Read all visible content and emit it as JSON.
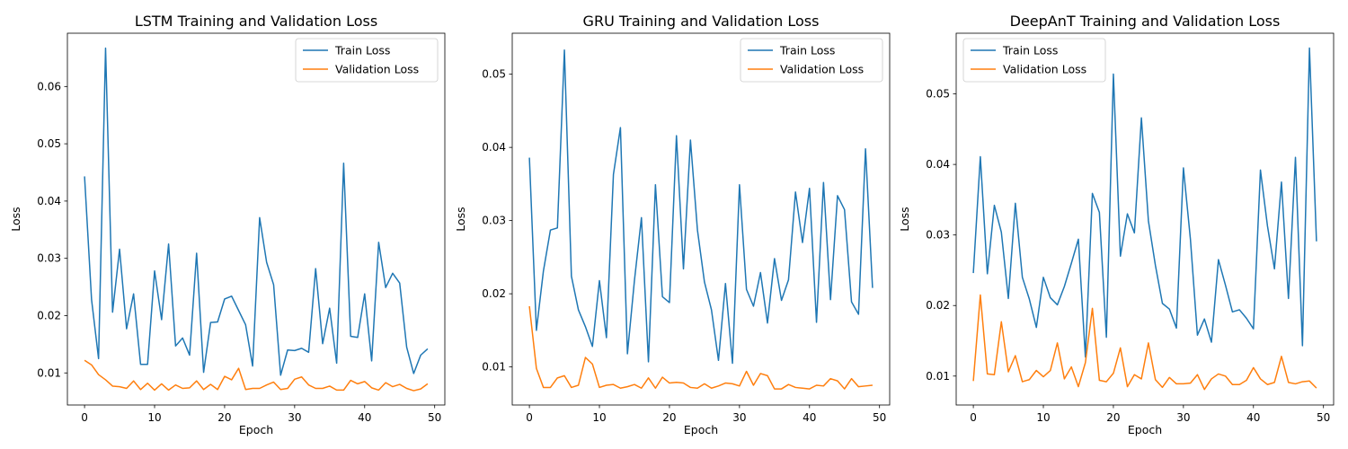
{
  "chart_data": [
    {
      "type": "line",
      "title": "LSTM Training and Validation Loss",
      "xlabel": "Epoch",
      "ylabel": "Loss",
      "xlim": [
        -2.45,
        51.45
      ],
      "ylim": [
        0.0044,
        0.0693
      ],
      "xticks": [
        0,
        10,
        20,
        30,
        40,
        50
      ],
      "yticks": [
        0.01,
        0.02,
        0.03,
        0.04,
        0.05,
        0.06
      ],
      "ytick_labels": [
        "0.01",
        "0.02",
        "0.03",
        "0.04",
        "0.05",
        "0.06"
      ],
      "legend": "top-right",
      "grid": false,
      "x": [
        0,
        1,
        2,
        3,
        4,
        5,
        6,
        7,
        8,
        9,
        10,
        11,
        12,
        13,
        14,
        15,
        16,
        17,
        18,
        19,
        20,
        21,
        22,
        23,
        24,
        25,
        26,
        27,
        28,
        29,
        30,
        31,
        32,
        33,
        34,
        35,
        36,
        37,
        38,
        39,
        40,
        41,
        42,
        43,
        44,
        45,
        46,
        47,
        48,
        49
      ],
      "series": [
        {
          "name": "Train Loss",
          "color": "#1f77b4",
          "values": [
            0.0443,
            0.0228,
            0.0125,
            0.0667,
            0.0206,
            0.0316,
            0.0177,
            0.0238,
            0.0115,
            0.0115,
            0.0278,
            0.0193,
            0.0325,
            0.0147,
            0.0161,
            0.0131,
            0.0309,
            0.0101,
            0.0188,
            0.0189,
            0.0229,
            0.0234,
            0.0209,
            0.0184,
            0.0112,
            0.0371,
            0.0293,
            0.0254,
            0.0096,
            0.014,
            0.0139,
            0.0143,
            0.0136,
            0.0282,
            0.0151,
            0.0213,
            0.0117,
            0.0466,
            0.0164,
            0.0162,
            0.0238,
            0.0121,
            0.0328,
            0.0249,
            0.0274,
            0.0257,
            0.0145,
            0.0099,
            0.0131,
            0.0142
          ]
        },
        {
          "name": "Validation Loss",
          "color": "#ff7f0e",
          "values": [
            0.0122,
            0.0114,
            0.0097,
            0.0088,
            0.0077,
            0.0076,
            0.0073,
            0.0086,
            0.0071,
            0.0082,
            0.007,
            0.0081,
            0.007,
            0.0079,
            0.0073,
            0.0074,
            0.0086,
            0.0071,
            0.008,
            0.0071,
            0.0094,
            0.0088,
            0.0108,
            0.0071,
            0.0073,
            0.0073,
            0.0079,
            0.0084,
            0.0071,
            0.0073,
            0.0089,
            0.0093,
            0.0079,
            0.0073,
            0.0073,
            0.0077,
            0.007,
            0.007,
            0.0087,
            0.0081,
            0.0085,
            0.0074,
            0.007,
            0.0083,
            0.0076,
            0.008,
            0.0073,
            0.0069,
            0.0072,
            0.0081
          ]
        }
      ]
    },
    {
      "type": "line",
      "title": "GRU Training and Validation Loss",
      "xlabel": "Epoch",
      "ylabel": "Loss",
      "xlim": [
        -2.45,
        51.45
      ],
      "ylim": [
        0.0048,
        0.0556
      ],
      "xticks": [
        0,
        10,
        20,
        30,
        40,
        50
      ],
      "yticks": [
        0.01,
        0.02,
        0.03,
        0.04,
        0.05
      ],
      "ytick_labels": [
        "0.01",
        "0.02",
        "0.03",
        "0.04",
        "0.05"
      ],
      "legend": "top-right",
      "grid": false,
      "x": [
        0,
        1,
        2,
        3,
        4,
        5,
        6,
        7,
        8,
        9,
        10,
        11,
        12,
        13,
        14,
        15,
        16,
        17,
        18,
        19,
        20,
        21,
        22,
        23,
        24,
        25,
        26,
        27,
        28,
        29,
        30,
        31,
        32,
        33,
        34,
        35,
        36,
        37,
        38,
        39,
        40,
        41,
        42,
        43,
        44,
        45,
        46,
        47,
        48,
        49
      ],
      "series": [
        {
          "name": "Train Loss",
          "color": "#1f77b4",
          "values": [
            0.0386,
            0.015,
            0.0231,
            0.0287,
            0.029,
            0.0533,
            0.0224,
            0.0178,
            0.0155,
            0.0128,
            0.0218,
            0.014,
            0.0363,
            0.0427,
            0.0118,
            0.0218,
            0.0304,
            0.0107,
            0.0349,
            0.0196,
            0.0188,
            0.0416,
            0.0234,
            0.041,
            0.0287,
            0.0216,
            0.0178,
            0.0109,
            0.0214,
            0.0105,
            0.0349,
            0.0206,
            0.0183,
            0.0229,
            0.016,
            0.0248,
            0.0191,
            0.0219,
            0.0339,
            0.027,
            0.0344,
            0.0161,
            0.0352,
            0.0192,
            0.0334,
            0.0315,
            0.0189,
            0.0172,
            0.0398,
            0.0208
          ]
        },
        {
          "name": "Validation Loss",
          "color": "#ff7f0e",
          "values": [
            0.0183,
            0.0098,
            0.0072,
            0.0072,
            0.0085,
            0.0088,
            0.0072,
            0.0075,
            0.0113,
            0.0104,
            0.0072,
            0.0075,
            0.0076,
            0.0071,
            0.0073,
            0.0076,
            0.0071,
            0.0085,
            0.0071,
            0.0086,
            0.0078,
            0.0079,
            0.0078,
            0.0072,
            0.0071,
            0.0077,
            0.0071,
            0.0074,
            0.0078,
            0.0077,
            0.0074,
            0.0094,
            0.0075,
            0.0091,
            0.0088,
            0.007,
            0.007,
            0.0076,
            0.0072,
            0.0071,
            0.007,
            0.0075,
            0.0074,
            0.0084,
            0.0081,
            0.007,
            0.0084,
            0.0073,
            0.0074,
            0.0075
          ]
        }
      ]
    },
    {
      "type": "line",
      "title": "DeepAnT Training and Validation Loss",
      "xlabel": "Epoch",
      "ylabel": "Loss",
      "xlim": [
        -2.45,
        51.45
      ],
      "ylim": [
        0.0059,
        0.0586
      ],
      "xticks": [
        0,
        10,
        20,
        30,
        40,
        50
      ],
      "yticks": [
        0.01,
        0.02,
        0.03,
        0.04,
        0.05
      ],
      "ytick_labels": [
        "0.01",
        "0.02",
        "0.03",
        "0.04",
        "0.05"
      ],
      "legend": "top-left",
      "grid": false,
      "x": [
        0,
        1,
        2,
        3,
        4,
        5,
        6,
        7,
        8,
        9,
        10,
        11,
        12,
        13,
        14,
        15,
        16,
        17,
        18,
        19,
        20,
        21,
        22,
        23,
        24,
        25,
        26,
        27,
        28,
        29,
        30,
        31,
        32,
        33,
        34,
        35,
        36,
        37,
        38,
        39,
        40,
        41,
        42,
        43,
        44,
        45,
        46,
        47,
        48,
        49
      ],
      "series": [
        {
          "name": "Train Loss",
          "color": "#1f77b4",
          "values": [
            0.0246,
            0.0411,
            0.0245,
            0.0342,
            0.0304,
            0.021,
            0.0345,
            0.024,
            0.0209,
            0.0169,
            0.024,
            0.0211,
            0.0201,
            0.0227,
            0.026,
            0.0294,
            0.0127,
            0.0359,
            0.0332,
            0.0155,
            0.0528,
            0.027,
            0.033,
            0.0303,
            0.0466,
            0.032,
            0.0257,
            0.0203,
            0.0195,
            0.0168,
            0.0395,
            0.0294,
            0.0158,
            0.0181,
            0.0148,
            0.0265,
            0.0229,
            0.0191,
            0.0194,
            0.0182,
            0.0167,
            0.0392,
            0.0313,
            0.0252,
            0.0375,
            0.021,
            0.041,
            0.0143,
            0.0565,
            0.0291
          ]
        },
        {
          "name": "Validation Loss",
          "color": "#ff7f0e",
          "values": [
            0.0093,
            0.0215,
            0.0103,
            0.0102,
            0.0177,
            0.0106,
            0.0129,
            0.0092,
            0.0095,
            0.0108,
            0.0099,
            0.0108,
            0.0147,
            0.0096,
            0.0113,
            0.0085,
            0.0119,
            0.0196,
            0.0094,
            0.0092,
            0.0104,
            0.014,
            0.0085,
            0.0102,
            0.0096,
            0.0147,
            0.0095,
            0.0084,
            0.0098,
            0.0089,
            0.0089,
            0.009,
            0.0102,
            0.0081,
            0.0096,
            0.0103,
            0.01,
            0.0088,
            0.0088,
            0.0094,
            0.0112,
            0.0096,
            0.0088,
            0.0091,
            0.0128,
            0.0091,
            0.0089,
            0.0092,
            0.0093,
            0.0083
          ]
        }
      ]
    }
  ]
}
